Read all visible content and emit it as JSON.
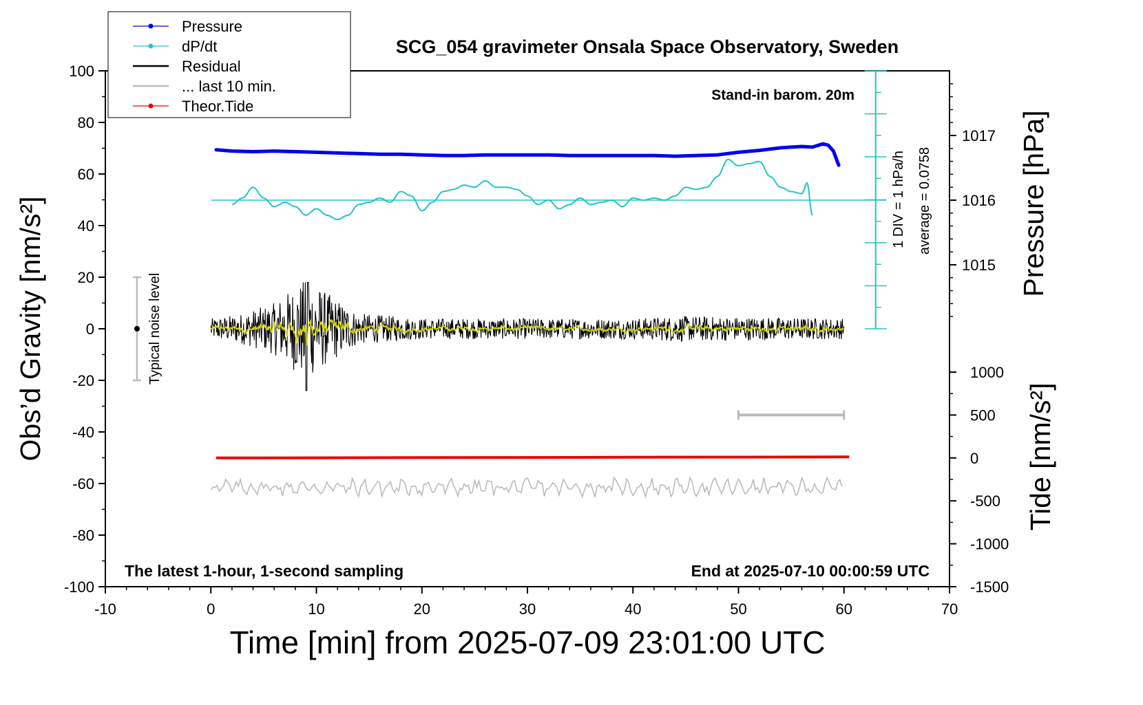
{
  "title": "SCG_054 gravimeter Onsala Space Observatory, Sweden",
  "xlabel": "Time [min] from 2025-07-09 23:01:00 UTC",
  "ylabel_left": "Obs’d Gravity [nm/s²]",
  "ylabel_pressure": "Pressure [hPa]",
  "ylabel_tide": "Tide [nm/s²]",
  "annotations": {
    "barometer": "Stand-in barom. 20m",
    "div_scale": "1 DIV = 1 hPa/h",
    "average": "average = 0.0758",
    "noise": "Typical noise level",
    "latest": "The latest 1-hour, 1-second sampling",
    "end": "End at 2025-07-10 00:00:59 UTC"
  },
  "legend": [
    {
      "label": "Pressure",
      "color": "#0000ee",
      "marker": "dot"
    },
    {
      "label": "dP/dt",
      "color": "#22c4c4",
      "marker": "dot"
    },
    {
      "label": "Residual",
      "color": "#000000",
      "marker": "none"
    },
    {
      "label": "... last 10 min.",
      "color": "#bbbbbb",
      "marker": "none"
    },
    {
      "label": "Theor.Tide",
      "color": "#ee0000",
      "marker": "dot"
    }
  ],
  "chart_data": {
    "type": "line",
    "grid": false,
    "legend_position": "top-left",
    "xlim": [
      -10,
      70
    ],
    "x_ticks": [
      "-10",
      "0",
      "10",
      "20",
      "30",
      "40",
      "50",
      "60",
      "70"
    ],
    "ylim": [
      -100,
      100
    ],
    "y_ticks": [
      "-100",
      "-80",
      "-60",
      "-40",
      "-20",
      "0",
      "20",
      "40",
      "60",
      "80",
      "100"
    ],
    "pressure_axis": {
      "ticks": [
        "1015",
        "1016",
        "1017"
      ],
      "unit": "hPa"
    },
    "tide_axis": {
      "ylim": [
        -1500,
        1000
      ],
      "ticks": [
        "-1500",
        "-1000",
        "-500",
        "0",
        "500",
        "1000"
      ]
    },
    "series": [
      {
        "name": "Pressure",
        "color": "#0000ee",
        "axis": "pressure",
        "x": [
          0.5,
          2,
          4,
          6,
          8,
          10,
          12,
          14,
          16,
          18,
          20,
          22,
          24,
          26,
          28,
          30,
          32,
          34,
          36,
          38,
          40,
          42,
          44,
          46,
          48,
          50,
          52,
          54,
          55,
          56,
          57,
          58,
          58.5,
          59,
          59.5
        ],
        "y": [
          1016.78,
          1016.76,
          1016.75,
          1016.76,
          1016.75,
          1016.74,
          1016.73,
          1016.72,
          1016.71,
          1016.71,
          1016.7,
          1016.69,
          1016.69,
          1016.7,
          1016.7,
          1016.7,
          1016.7,
          1016.69,
          1016.69,
          1016.69,
          1016.69,
          1016.69,
          1016.68,
          1016.69,
          1016.7,
          1016.74,
          1016.77,
          1016.81,
          1016.82,
          1016.83,
          1016.82,
          1016.87,
          1016.85,
          1016.76,
          1016.54
        ]
      },
      {
        "name": "dP/dt",
        "color": "#22c4c4",
        "axis": "dPdt",
        "x": [
          2,
          3,
          4,
          5,
          6,
          7,
          8,
          9,
          10,
          11,
          12,
          13,
          14,
          15,
          16,
          17,
          18,
          19,
          20,
          21,
          22,
          23,
          24,
          25,
          26,
          27,
          28,
          29,
          30,
          31,
          32,
          33,
          34,
          35,
          36,
          37,
          38,
          39,
          40,
          41,
          42,
          43,
          44,
          45,
          46,
          47,
          48,
          49,
          50,
          51,
          52,
          53,
          54,
          55,
          56,
          56.5,
          57
        ],
        "y": [
          -0.1,
          0.05,
          0.3,
          0.05,
          -0.15,
          -0.05,
          -0.15,
          -0.35,
          -0.2,
          -0.35,
          -0.45,
          -0.35,
          -0.1,
          -0.05,
          0.05,
          -0.05,
          0.2,
          0.1,
          -0.25,
          -0.05,
          0.2,
          0.25,
          0.35,
          0.3,
          0.45,
          0.3,
          0.3,
          0.25,
          0.1,
          -0.1,
          0.0,
          -0.2,
          -0.1,
          0.05,
          -0.1,
          -0.05,
          0.0,
          -0.15,
          0.05,
          0.0,
          0.05,
          0.0,
          0.1,
          0.3,
          0.25,
          0.3,
          0.55,
          0.95,
          0.8,
          0.85,
          0.9,
          0.55,
          0.3,
          0.2,
          0.15,
          0.4,
          -0.35
        ]
      },
      {
        "name": "Residual",
        "color": "#000000",
        "axis": "gravity",
        "x_range": [
          0,
          60
        ],
        "amplitude_envelope": [
          {
            "x": 0,
            "a": 4
          },
          {
            "x": 3,
            "a": 6
          },
          {
            "x": 6,
            "a": 10
          },
          {
            "x": 9,
            "a": 20
          },
          {
            "x": 11,
            "a": 14
          },
          {
            "x": 14,
            "a": 6
          },
          {
            "x": 20,
            "a": 4
          },
          {
            "x": 40,
            "a": 4
          },
          {
            "x": 44,
            "a": 5
          },
          {
            "x": 60,
            "a": 4
          }
        ],
        "y_min": -24,
        "y_max": 18
      },
      {
        "name": "... last 10 min.",
        "color": "#bbbbbb",
        "axis": "gravity",
        "x_range": [
          0,
          60
        ],
        "y_mean": -61.5,
        "amplitude": 3
      },
      {
        "name": "Theor.Tide",
        "color": "#ee0000",
        "axis": "tide",
        "x": [
          0.5,
          10,
          20,
          30,
          40,
          50,
          60.5
        ],
        "y": [
          0,
          2,
          4,
          6,
          8,
          10,
          12
        ]
      }
    ],
    "noise_bar": {
      "x": -7,
      "low": -20,
      "high": 20
    },
    "dPdt_scale_x": 63,
    "ten_min_bar": {
      "x0": 50,
      "x1": 60,
      "tide_y": 500
    }
  }
}
